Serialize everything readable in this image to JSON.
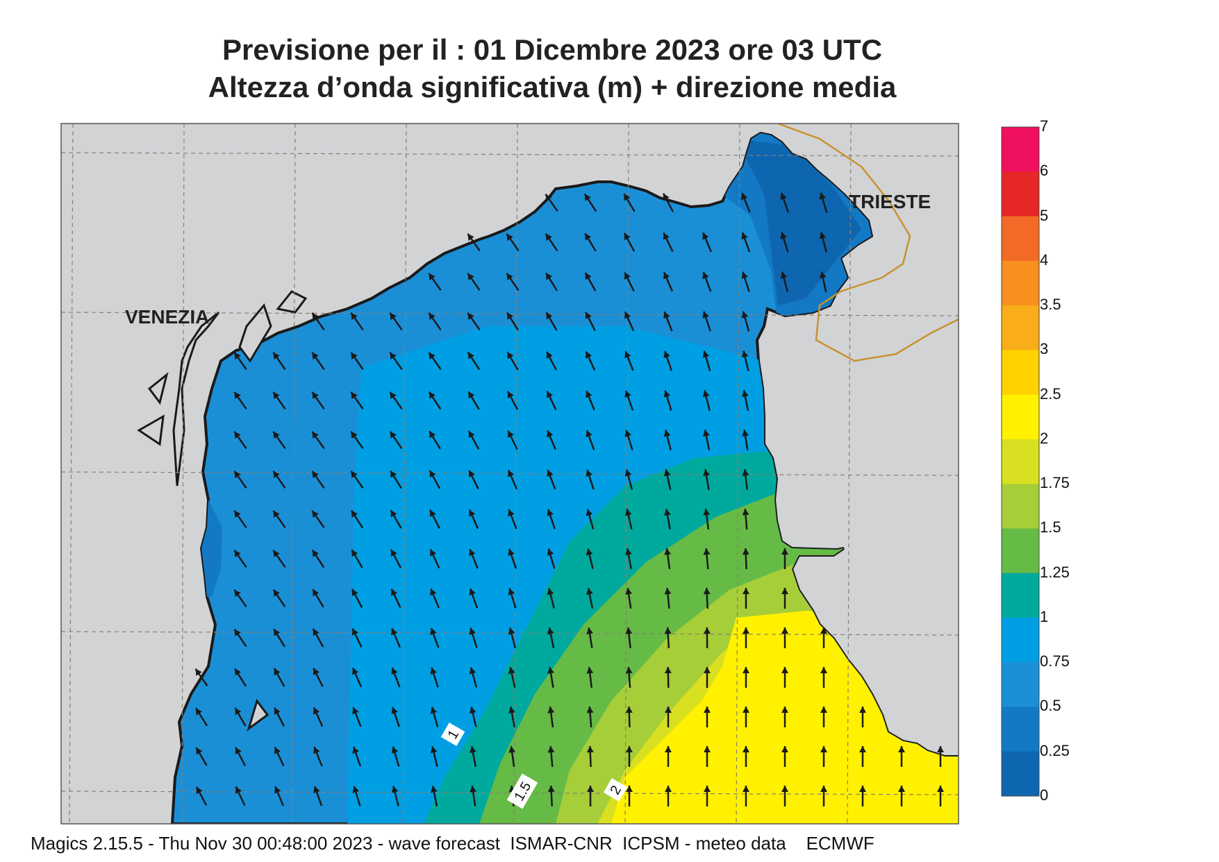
{
  "header": {
    "title_line1": "Previsione per il  :  01 Dicembre  2023   ore 03 UTC",
    "title_line2": "Altezza d’onda significativa (m) + direzione media"
  },
  "map": {
    "places": [
      {
        "name": "VENEZIA",
        "id": "venezia"
      },
      {
        "name": "TRIESTE",
        "id": "trieste"
      }
    ],
    "contour_labels": [
      "1",
      "1.5",
      "2"
    ],
    "land_color": "#d2d3d5",
    "coast_color": "#1a1a1a",
    "border_color": "#c8922f",
    "arrow_color": "#1a1a1a",
    "arrow_direction": "waves propagating toward north / north-west"
  },
  "legend": {
    "title": "",
    "levels": [
      "7",
      "6",
      "5",
      "4",
      "3.5",
      "3",
      "2.5",
      "2",
      "1.75",
      "1.5",
      "1.25",
      "1",
      "0.75",
      "0.5",
      "0.25",
      "0"
    ],
    "colors": [
      "#ef1060",
      "#e52727",
      "#f26a26",
      "#f7901e",
      "#f9ad19",
      "#ffd200",
      "#fff100",
      "#d9e021",
      "#a6ce39",
      "#66bb46",
      "#00a99d",
      "#009fe3",
      "#1b8fd6",
      "#1379c4",
      "#0f66b0"
    ]
  },
  "footer": {
    "text": "Magics 2.15.5 - Thu Nov 30 00:48:00 2023 - wave forecast  ISMAR-CNR  ICPSM - meteo data    ECMWF"
  }
}
